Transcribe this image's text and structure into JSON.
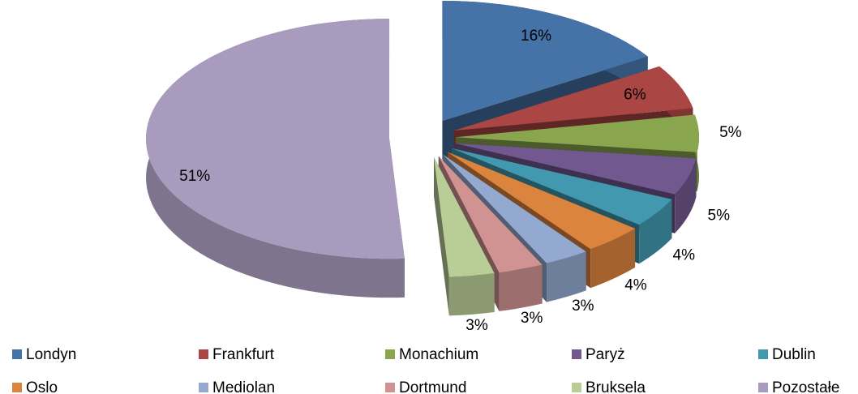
{
  "chart_data": {
    "type": "pie",
    "categories": [
      "Londyn",
      "Frankfurt",
      "Monachium",
      "Paryż",
      "Dublin",
      "Oslo",
      "Mediolan",
      "Dortmund",
      "Bruksela",
      "Pozostałe"
    ],
    "values": [
      16,
      6,
      5,
      5,
      4,
      4,
      3,
      3,
      3,
      51
    ],
    "value_labels": [
      "16%",
      "6%",
      "5%",
      "5%",
      "4%",
      "4%",
      "3%",
      "3%",
      "3%",
      "51%"
    ],
    "colors": [
      "#4572a7",
      "#aa4643",
      "#89a54e",
      "#71588f",
      "#4198af",
      "#db843d",
      "#93a9cf",
      "#d19392",
      "#b9cd96",
      "#a99bbd"
    ],
    "legend": "bottom"
  }
}
